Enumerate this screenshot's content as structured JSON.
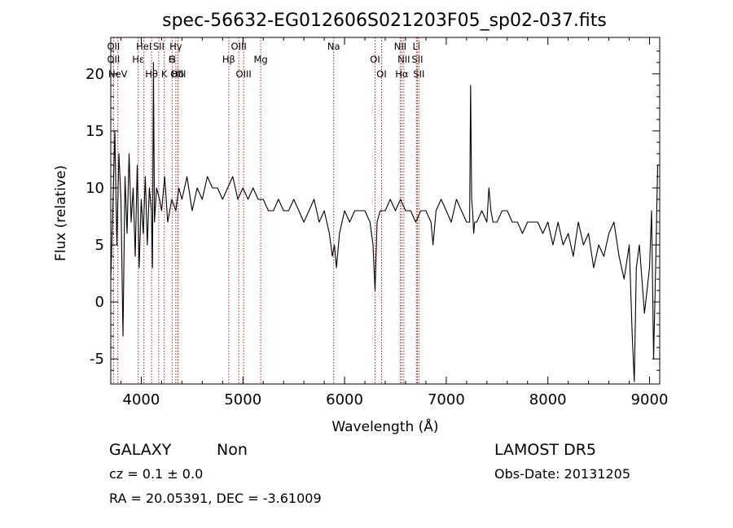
{
  "chart_data": {
    "type": "line",
    "title": "spec-56632-EG012606S021203F05_sp02-037.fits",
    "xlabel": "Wavelength (Å)",
    "ylabel": "Flux (relative)",
    "xlim": [
      3700,
      9100
    ],
    "ylim": [
      -7.2,
      23.2
    ],
    "xticks": [
      4000,
      5000,
      6000,
      7000,
      8000,
      9000
    ],
    "yticks": [
      -5,
      0,
      5,
      10,
      15,
      20
    ],
    "series": [
      {
        "color": "#000000",
        "x": [
          3700,
          3720,
          3740,
          3760,
          3780,
          3800,
          3820,
          3840,
          3860,
          3880,
          3900,
          3920,
          3940,
          3960,
          3980,
          4000,
          4020,
          4040,
          4060,
          4080,
          4100,
          4110,
          4120,
          4130,
          4150,
          4180,
          4200,
          4230,
          4260,
          4300,
          4340,
          4370,
          4400,
          4450,
          4500,
          4550,
          4600,
          4650,
          4700,
          4750,
          4800,
          4850,
          4900,
          4950,
          5000,
          5050,
          5100,
          5150,
          5200,
          5250,
          5300,
          5350,
          5400,
          5450,
          5500,
          5550,
          5600,
          5650,
          5700,
          5750,
          5800,
          5850,
          5880,
          5900,
          5920,
          5950,
          6000,
          6050,
          6100,
          6150,
          6200,
          6250,
          6280,
          6300,
          6320,
          6350,
          6400,
          6450,
          6500,
          6550,
          6600,
          6650,
          6700,
          6750,
          6800,
          6850,
          6870,
          6880,
          6900,
          6950,
          7000,
          7050,
          7100,
          7150,
          7200,
          7230,
          7240,
          7250,
          7260,
          7270,
          7280,
          7300,
          7350,
          7400,
          7420,
          7440,
          7460,
          7500,
          7550,
          7600,
          7650,
          7700,
          7750,
          7800,
          7850,
          7900,
          7950,
          8000,
          8050,
          8100,
          8150,
          8200,
          8250,
          8300,
          8350,
          8400,
          8450,
          8500,
          8550,
          8600,
          8650,
          8700,
          8750,
          8800,
          8830,
          8850,
          8870,
          8900,
          8950,
          9000,
          9020,
          9040,
          9060,
          9080
        ],
        "y": [
          2,
          8,
          15,
          5,
          13,
          9,
          -3,
          11,
          6,
          13,
          7,
          10,
          4,
          12,
          3,
          9,
          6,
          11,
          5,
          10,
          8,
          3,
          21,
          7,
          10,
          9,
          8,
          11,
          7,
          9,
          8,
          10,
          9,
          11,
          8,
          10,
          9,
          11,
          10,
          10,
          9,
          10,
          11,
          9,
          10,
          9,
          10,
          9,
          9,
          8,
          8,
          9,
          8,
          8,
          9,
          8,
          7,
          8,
          9,
          7,
          8,
          6,
          4,
          5,
          3,
          6,
          8,
          7,
          8,
          8,
          8,
          7,
          5,
          1,
          7,
          8,
          8,
          9,
          8,
          9,
          8,
          8,
          7,
          8,
          8,
          7,
          5,
          6,
          8,
          9,
          8,
          7,
          9,
          8,
          7,
          7,
          19,
          9,
          8,
          6,
          7,
          7,
          8,
          7,
          10,
          8,
          7,
          7,
          8,
          8,
          7,
          7,
          6,
          7,
          7,
          7,
          6,
          7,
          5,
          7,
          5,
          6,
          4,
          7,
          5,
          6,
          3,
          5,
          4,
          6,
          7,
          4,
          2,
          5,
          -3,
          -7,
          3,
          5,
          -1,
          3,
          8,
          -5,
          3,
          12
        ]
      }
    ],
    "line_markers": [
      {
        "wl": 3727,
        "label": "OII",
        "row": 0
      },
      {
        "wl": 3727,
        "label": "OII",
        "row": 1
      },
      {
        "wl": 3770,
        "label": "NeV",
        "row": 2
      },
      {
        "wl": 3970,
        "label": "Hε",
        "row": 1
      },
      {
        "wl": 4101,
        "label": "Hθ",
        "row": 2
      },
      {
        "wl": 4026,
        "label": "HeI",
        "row": 0
      },
      {
        "wl": 4172,
        "label": "SII",
        "row": 0
      },
      {
        "wl": 4226,
        "label": "K",
        "row": 2
      },
      {
        "wl": 4304,
        "label": "H",
        "row": 1
      },
      {
        "wl": 4340,
        "label": "Hγ",
        "row": 0
      },
      {
        "wl": 4360,
        "label": "Hδ",
        "row": 2
      },
      {
        "wl": 4304,
        "label": "G",
        "row": 1
      },
      {
        "wl": 4363,
        "label": "OIII",
        "row": 2
      },
      {
        "wl": 4959,
        "label": "OIII",
        "row": 0
      },
      {
        "wl": 4861,
        "label": "Hβ",
        "row": 1
      },
      {
        "wl": 5007,
        "label": "OIII",
        "row": 2
      },
      {
        "wl": 5175,
        "label": "Mg",
        "row": 1
      },
      {
        "wl": 5893,
        "label": "Na",
        "row": 0
      },
      {
        "wl": 6300,
        "label": "OI",
        "row": 1
      },
      {
        "wl": 6364,
        "label": "OI",
        "row": 2
      },
      {
        "wl": 6548,
        "label": "NII",
        "row": 0
      },
      {
        "wl": 6583,
        "label": "NII",
        "row": 1
      },
      {
        "wl": 6563,
        "label": "Hα",
        "row": 2
      },
      {
        "wl": 6707,
        "label": "Li",
        "row": 0
      },
      {
        "wl": 6716,
        "label": "SII",
        "row": 1
      },
      {
        "wl": 6731,
        "label": "SII",
        "row": 2
      }
    ]
  },
  "info": {
    "class": "GALAXY",
    "subclass": "Non",
    "survey": "LAMOST DR5",
    "cz": "cz = 0.1 ± 0.0",
    "obs_date": "Obs-Date: 20131205",
    "radec": "RA =  20.05391, DEC =  -3.61009"
  },
  "colors": {
    "axis": "#000000",
    "line_marker": "#b22222",
    "spectrum": "#000000"
  }
}
